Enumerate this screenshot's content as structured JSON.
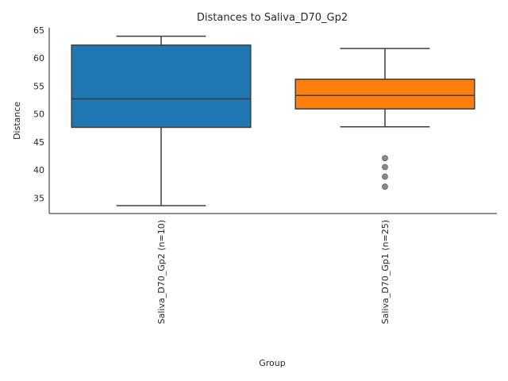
{
  "chart_data": {
    "type": "box",
    "title": "Distances to Saliva_D70_Gp2",
    "xlabel": "Group",
    "ylabel": "Distance",
    "ylim": [
      32.2,
      65.4
    ],
    "yticks": [
      35,
      40,
      45,
      50,
      55,
      60,
      65
    ],
    "grid": false,
    "legend": "none",
    "boxes": [
      {
        "label": "Saliva_D70_Gp2 (n=10)",
        "color": "#1f77b4",
        "whisker_low": 33.6,
        "q1": 47.6,
        "median": 52.7,
        "q3": 62.3,
        "whisker_high": 63.9,
        "outliers": []
      },
      {
        "label": "Saliva_D70_Gp1 (n=25)",
        "color": "#ff7f0e",
        "whisker_low": 47.7,
        "q1": 50.9,
        "median": 53.3,
        "q3": 56.2,
        "whisker_high": 61.7,
        "outliers": [
          42.1,
          40.5,
          38.8,
          37.0
        ]
      }
    ]
  }
}
